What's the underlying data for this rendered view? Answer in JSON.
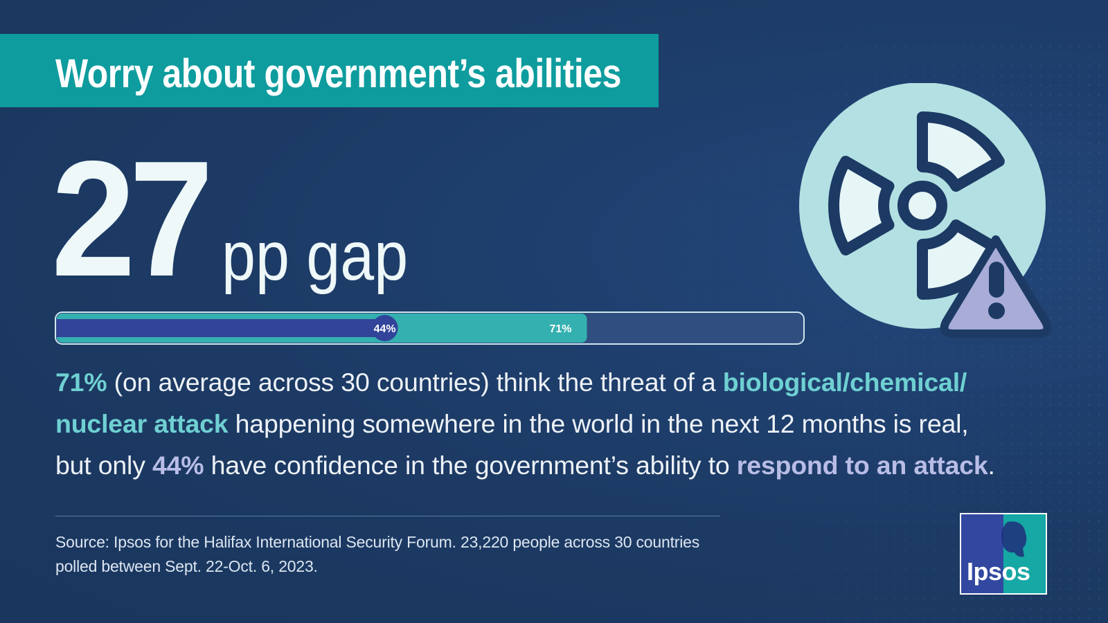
{
  "title": "Worry about government’s abilities",
  "headline": {
    "number": "27",
    "unit": "pp gap"
  },
  "chart_data": {
    "type": "bar",
    "categories": [
      "Confidence in government’s ability to respond to an attack",
      "Think threat of a biological/chemical/nuclear attack is real"
    ],
    "values": [
      44,
      71
    ],
    "value_labels": [
      "44%",
      "71%"
    ],
    "xlim": [
      0,
      100
    ],
    "colors": {
      "track": "#304f80",
      "track_border": "#cfe6ec",
      "low_bar": "#31449a",
      "high_bar": "#35b0b0"
    }
  },
  "body": {
    "line1": {
      "hl1": "71%",
      "t1": " (on average across 30 countries) think the threat of a ",
      "hl2": "biological/chemical/"
    },
    "line2": {
      "hl1": "nuclear attack",
      "t1": " happening somewhere in the world in the next 12 months is real,"
    },
    "line3": {
      "t1": "but only ",
      "hl1": "44%",
      "t2": " have confidence in the government’s ability to ",
      "hl2": "respond to an attack",
      "t3": "."
    }
  },
  "source": {
    "line1": "Source: Ipsos for the Halifax International Security Forum. 23,220 people across 30 countries",
    "line2": "polled between Sept. 22-Oct. 6, 2023."
  },
  "logo": {
    "text": "Ipsos"
  },
  "icons": [
    "radiation-icon",
    "warning-icon"
  ],
  "colors": {
    "background": "#1c3a64",
    "title_bar": "#0e9c9e",
    "highlight_teal": "#6fd0d2",
    "highlight_lavender": "#b9bde6",
    "icon_fill": "#b3e0e2",
    "warning_fill": "#a8acd6"
  }
}
